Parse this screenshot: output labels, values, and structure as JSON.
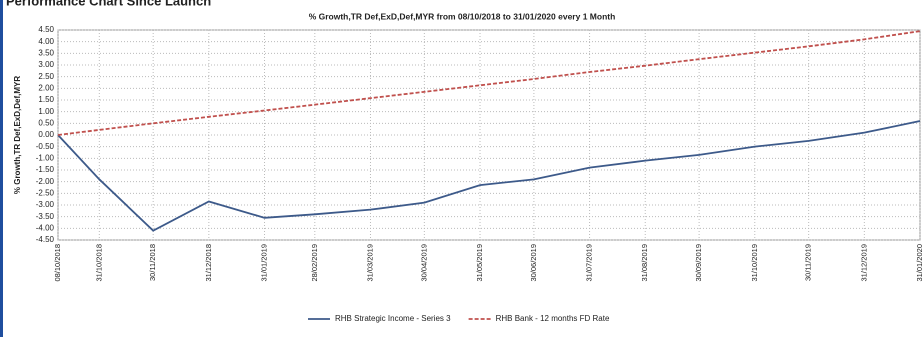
{
  "header": "Performance Chart Since Launch",
  "chart_data": {
    "type": "line",
    "title": "% Growth,TR Def,ExD,Def,MYR from 08/10/2018 to 31/01/2020 every 1 Month",
    "y_label": "% Growth,TR Def,ExD,Def,MYR",
    "x": [
      "08/10/2018",
      "31/10/2018",
      "30/11/2018",
      "31/12/2018",
      "31/01/2019",
      "28/02/2019",
      "31/03/2019",
      "30/04/2019",
      "31/05/2019",
      "30/06/2019",
      "31/07/2019",
      "31/08/2019",
      "30/09/2019",
      "31/10/2019",
      "30/11/2019",
      "31/12/2019",
      "31/01/2020"
    ],
    "series": [
      {
        "name": "RHB Strategic Income - Series 3",
        "color": "#3d5a8a",
        "dashed": false,
        "values": [
          0,
          -1.9,
          -4.1,
          -2.85,
          -3.55,
          -3.4,
          -3.2,
          -2.9,
          -2.15,
          -1.9,
          -1.4,
          -1.1,
          -0.85,
          -0.5,
          -0.25,
          0.1,
          0.6
        ]
      },
      {
        "name": "RHB Bank - 12 months FD Rate",
        "color": "#c0504d",
        "dashed": true,
        "values": [
          0,
          0.22,
          0.5,
          0.78,
          1.05,
          1.3,
          1.58,
          1.85,
          2.13,
          2.4,
          2.7,
          2.97,
          3.25,
          3.53,
          3.8,
          4.1,
          4.45
        ]
      }
    ],
    "ylim": [
      -4.5,
      4.5
    ],
    "yticks": [
      {
        "value": 4.5,
        "label": "4.50"
      },
      {
        "value": 4,
        "label": "4.00"
      },
      {
        "value": 3.5,
        "label": "3.50"
      },
      {
        "value": 3,
        "label": "3.00"
      },
      {
        "value": 2.5,
        "label": "2.50"
      },
      {
        "value": 2,
        "label": "2.00"
      },
      {
        "value": 1.5,
        "label": "1.50"
      },
      {
        "value": 1,
        "label": "1.00"
      },
      {
        "value": 0.5,
        "label": "0.50"
      },
      {
        "value": 0,
        "label": "0.00"
      },
      {
        "value": -0.5,
        "label": "-0.50"
      },
      {
        "value": -1,
        "label": "-1.00"
      },
      {
        "value": -1.5,
        "label": "-1.50"
      },
      {
        "value": -2,
        "label": "-2.00"
      },
      {
        "value": -2.5,
        "label": "-2.50"
      },
      {
        "value": -3,
        "label": "-3.00"
      },
      {
        "value": -3.5,
        "label": "-3.50"
      },
      {
        "value": -4,
        "label": "-4.00"
      },
      {
        "value": -4.5,
        "label": "-4.50"
      }
    ],
    "grid": true,
    "legend": "bottom"
  }
}
